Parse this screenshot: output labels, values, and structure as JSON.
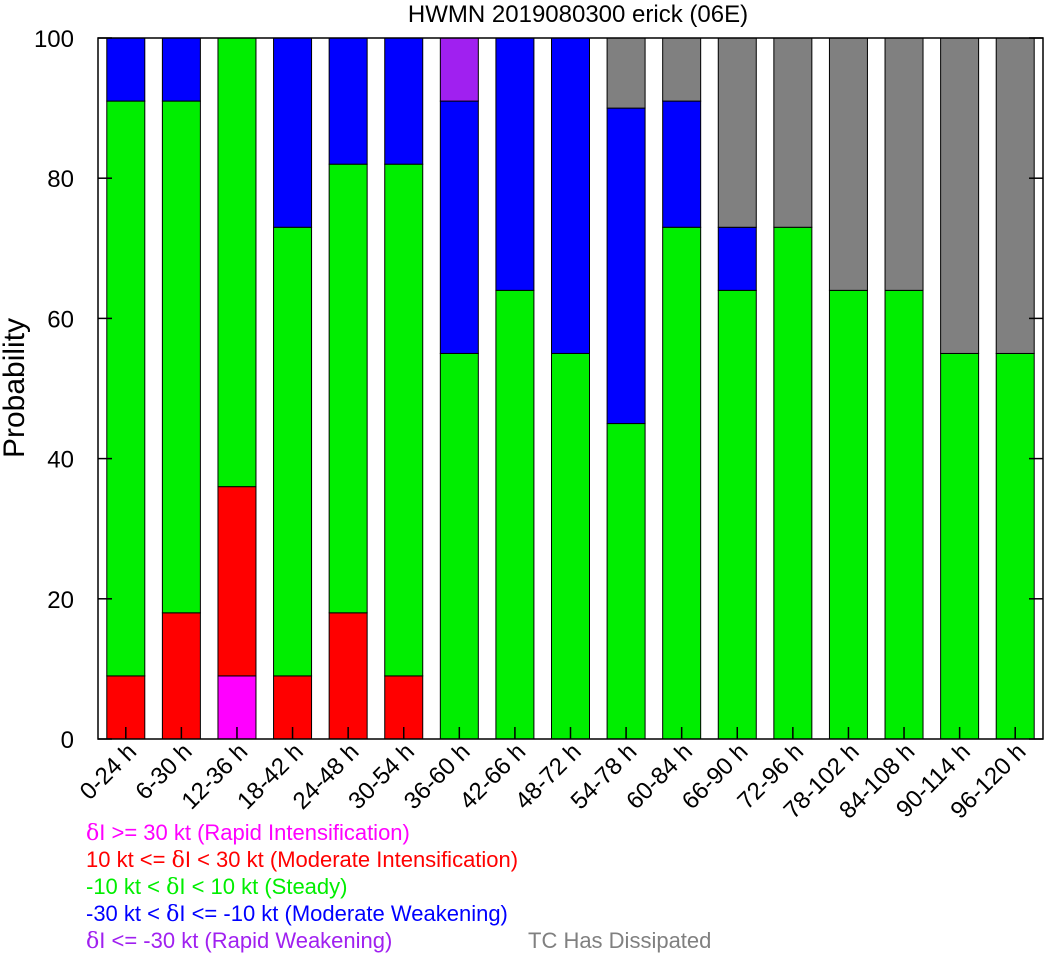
{
  "chart_data": {
    "type": "bar",
    "stacked": true,
    "title": "HWMN 2019080300 erick (06E)",
    "ylabel": "Probability",
    "xlabel": "",
    "ylim": [
      0,
      100
    ],
    "yticks": [
      0,
      20,
      40,
      60,
      80,
      100
    ],
    "grid": false,
    "legend_position": "bottom-left",
    "categories": [
      "0-24 h",
      "6-30 h",
      "12-36 h",
      "18-42 h",
      "24-48 h",
      "30-54 h",
      "36-60 h",
      "42-66 h",
      "48-72 h",
      "54-78 h",
      "60-84 h",
      "66-90 h",
      "72-96 h",
      "78-102 h",
      "84-108 h",
      "90-114 h",
      "96-120 h"
    ],
    "series": [
      {
        "key": "ri",
        "legend_pre": "",
        "legend_post": "I >= 30 kt (Rapid Intensification)",
        "color": "#ff00ff",
        "values": [
          0,
          0,
          9,
          0,
          0,
          0,
          0,
          0,
          0,
          0,
          0,
          0,
          0,
          0,
          0,
          0,
          0
        ]
      },
      {
        "key": "mi",
        "legend_pre": "10 kt <= ",
        "legend_post": "I < 30 kt (Moderate Intensification)",
        "color": "#ff0000",
        "values": [
          9,
          18,
          27,
          9,
          18,
          9,
          0,
          0,
          0,
          0,
          0,
          0,
          0,
          0,
          0,
          0,
          0
        ]
      },
      {
        "key": "st",
        "legend_pre": "-10 kt < ",
        "legend_post": "I < 10 kt (Steady)",
        "color": "#00ee00",
        "values": [
          82,
          73,
          64,
          64,
          64,
          73,
          55,
          64,
          55,
          45,
          73,
          64,
          73,
          64,
          64,
          55,
          55
        ]
      },
      {
        "key": "mw",
        "legend_pre": "-30 kt < ",
        "legend_post": "I <= -10 kt (Moderate Weakening)",
        "color": "#0000ff",
        "values": [
          9,
          9,
          0,
          27,
          18,
          18,
          36,
          36,
          45,
          45,
          18,
          9,
          0,
          0,
          0,
          0,
          0
        ]
      },
      {
        "key": "rw",
        "legend_pre": "",
        "legend_post": "I <= -30 kt (Rapid Weakening)",
        "color": "#a020f0",
        "values": [
          0,
          0,
          0,
          0,
          0,
          0,
          9,
          0,
          0,
          0,
          0,
          0,
          0,
          0,
          0,
          0,
          0
        ]
      },
      {
        "key": "dis",
        "legend_pre": "",
        "legend_post": "TC Has Dissipated",
        "color": "#808080",
        "values": [
          0,
          0,
          0,
          0,
          0,
          0,
          0,
          0,
          0,
          10,
          9,
          27,
          27,
          36,
          36,
          45,
          45
        ]
      }
    ],
    "delta_symbol": "δ"
  }
}
